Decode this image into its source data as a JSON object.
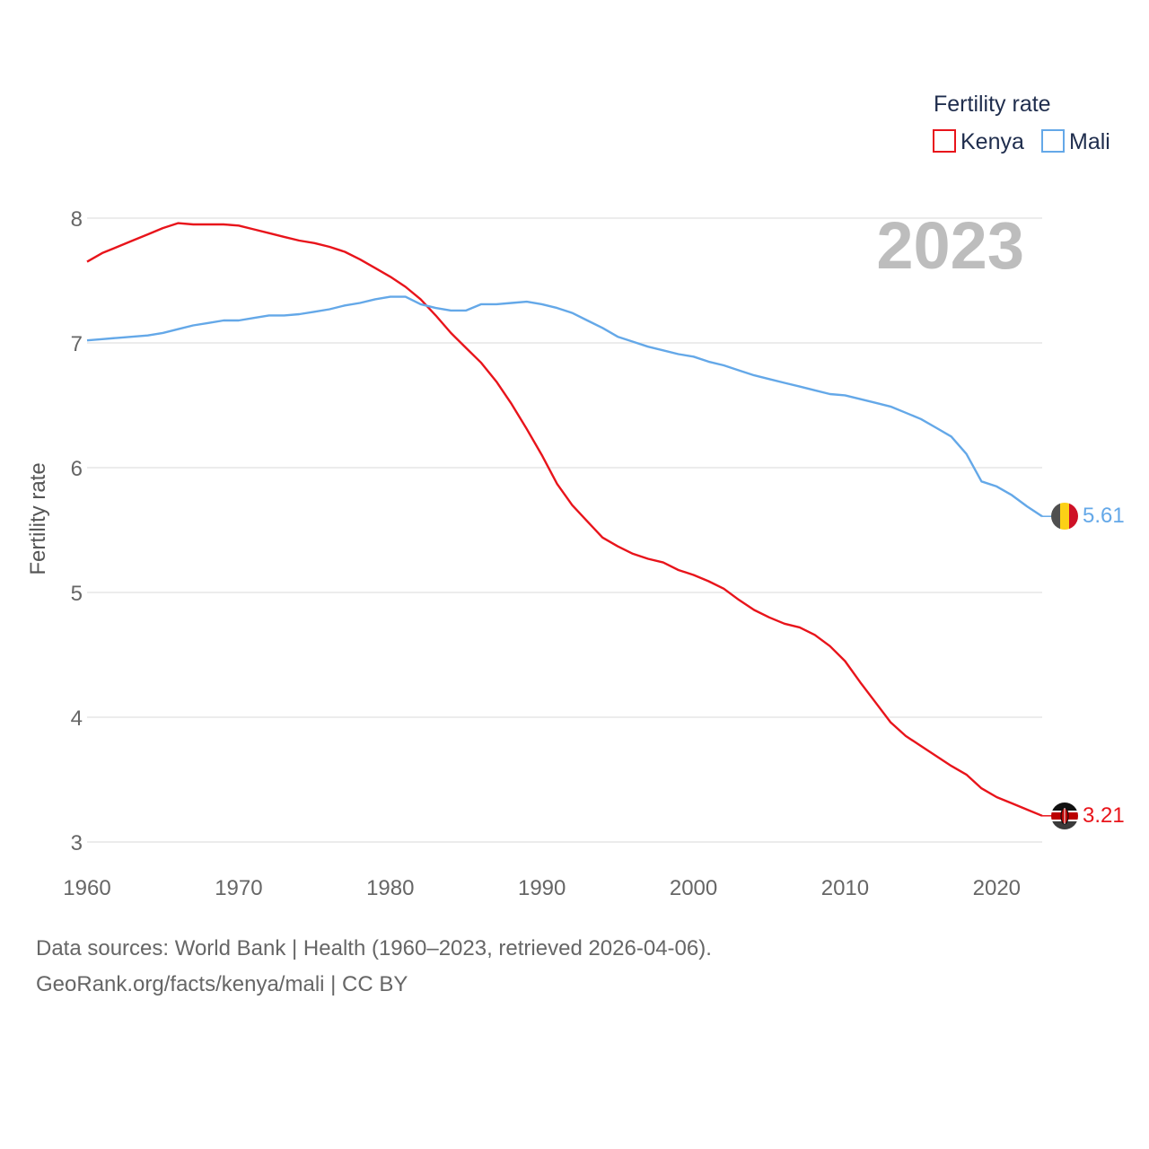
{
  "chart_data": {
    "type": "line",
    "legend_title": "Fertility rate",
    "ylabel": "Fertility rate",
    "year_label": "2023",
    "xlim": [
      1960,
      2023
    ],
    "ylim": [
      3,
      8
    ],
    "x_ticks": [
      1960,
      1970,
      1980,
      1990,
      2000,
      2010,
      2020
    ],
    "y_ticks": [
      3,
      4,
      5,
      6,
      7,
      8
    ],
    "x": [
      1960,
      1961,
      1962,
      1963,
      1964,
      1965,
      1966,
      1967,
      1968,
      1969,
      1970,
      1971,
      1972,
      1973,
      1974,
      1975,
      1976,
      1977,
      1978,
      1979,
      1980,
      1981,
      1982,
      1983,
      1984,
      1985,
      1986,
      1987,
      1988,
      1989,
      1990,
      1991,
      1992,
      1993,
      1994,
      1995,
      1996,
      1997,
      1998,
      1999,
      2000,
      2001,
      2002,
      2003,
      2004,
      2005,
      2006,
      2007,
      2008,
      2009,
      2010,
      2011,
      2012,
      2013,
      2014,
      2015,
      2016,
      2017,
      2018,
      2019,
      2020,
      2021,
      2022,
      2023
    ],
    "series": [
      {
        "name": "Kenya",
        "color": "#e8141b",
        "end_label": "3.21",
        "values": [
          7.65,
          7.72,
          7.77,
          7.82,
          7.87,
          7.92,
          7.96,
          7.95,
          7.95,
          7.95,
          7.94,
          7.91,
          7.88,
          7.85,
          7.82,
          7.8,
          7.77,
          7.73,
          7.67,
          7.6,
          7.53,
          7.45,
          7.35,
          7.22,
          7.08,
          6.96,
          6.84,
          6.69,
          6.51,
          6.31,
          6.1,
          5.87,
          5.7,
          5.57,
          5.44,
          5.37,
          5.31,
          5.27,
          5.24,
          5.18,
          5.14,
          5.09,
          5.03,
          4.94,
          4.86,
          4.8,
          4.75,
          4.72,
          4.66,
          4.57,
          4.45,
          4.28,
          4.12,
          3.96,
          3.85,
          3.77,
          3.69,
          3.61,
          3.54,
          3.43,
          3.36,
          3.31,
          3.26,
          3.21
        ]
      },
      {
        "name": "Mali",
        "color": "#64a8e8",
        "end_label": "5.61",
        "values": [
          7.02,
          7.03,
          7.04,
          7.05,
          7.06,
          7.08,
          7.11,
          7.14,
          7.16,
          7.18,
          7.18,
          7.2,
          7.22,
          7.22,
          7.23,
          7.25,
          7.27,
          7.3,
          7.32,
          7.35,
          7.37,
          7.37,
          7.31,
          7.28,
          7.26,
          7.26,
          7.31,
          7.31,
          7.32,
          7.33,
          7.31,
          7.28,
          7.24,
          7.18,
          7.12,
          7.05,
          7.01,
          6.97,
          6.94,
          6.91,
          6.89,
          6.85,
          6.82,
          6.78,
          6.74,
          6.71,
          6.68,
          6.65,
          6.62,
          6.59,
          6.58,
          6.55,
          6.52,
          6.49,
          6.44,
          6.39,
          6.32,
          6.25,
          6.11,
          5.89,
          5.85,
          5.78,
          5.69,
          5.61
        ]
      }
    ]
  },
  "footer": {
    "line1": "Data sources: World Bank | Health (1960–2023, retrieved 2026-04-06).",
    "line2": "GeoRank.org/facts/kenya/mali | CC BY"
  },
  "flags": {
    "kenya": "kenya-flag-icon",
    "mali": "mali-flag-icon"
  }
}
